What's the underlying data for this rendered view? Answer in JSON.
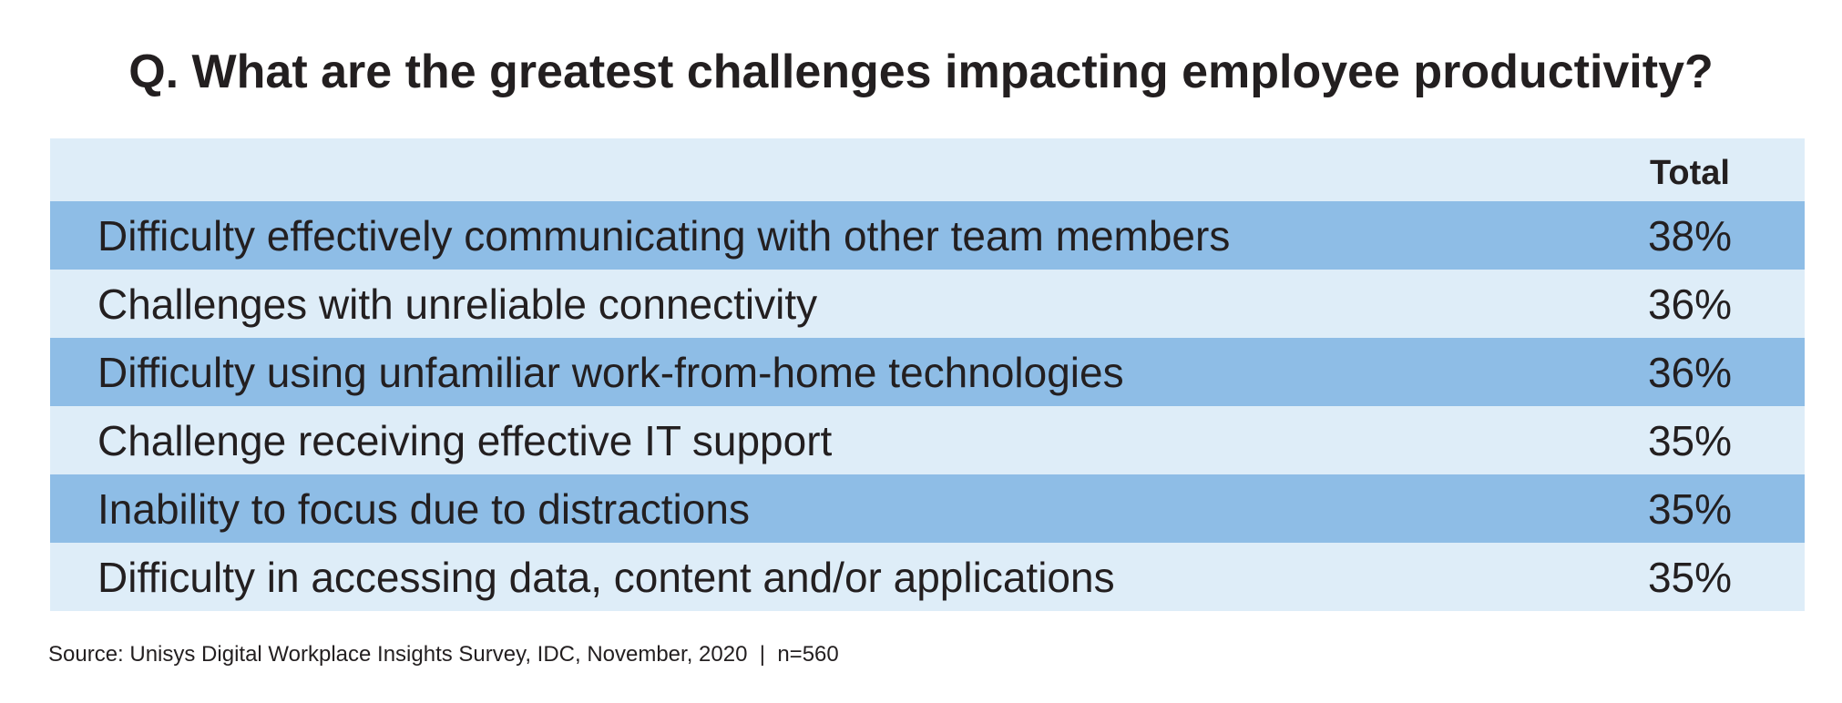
{
  "title": "Q. What are the greatest challenges impacting employee productivity?",
  "header": {
    "total_label": "Total"
  },
  "chart_data": {
    "type": "table",
    "title": "Q. What are the greatest challenges impacting employee productivity?",
    "columns": [
      "",
      "Total"
    ],
    "rows": [
      {
        "label": "Difficulty effectively communicating with other team members",
        "value": "38%",
        "percent": 38
      },
      {
        "label": "Challenges with unreliable connectivity",
        "value": "36%",
        "percent": 36
      },
      {
        "label": "Difficulty using unfamiliar work-from-home technologies",
        "value": "36%",
        "percent": 36
      },
      {
        "label": "Challenge receiving effective IT support",
        "value": "35%",
        "percent": 35
      },
      {
        "label": "Inability to focus due to distractions",
        "value": "35%",
        "percent": 35
      },
      {
        "label": "Difficulty in accessing data, content and/or applications",
        "value": "35%",
        "percent": 35
      }
    ]
  },
  "source": "Source: Unisys Digital Workplace Insights Survey, IDC, November, 2020  |  n=560",
  "colors": {
    "row_dark": "#8ebde6",
    "row_light": "#deedf8",
    "text": "#231f20"
  }
}
